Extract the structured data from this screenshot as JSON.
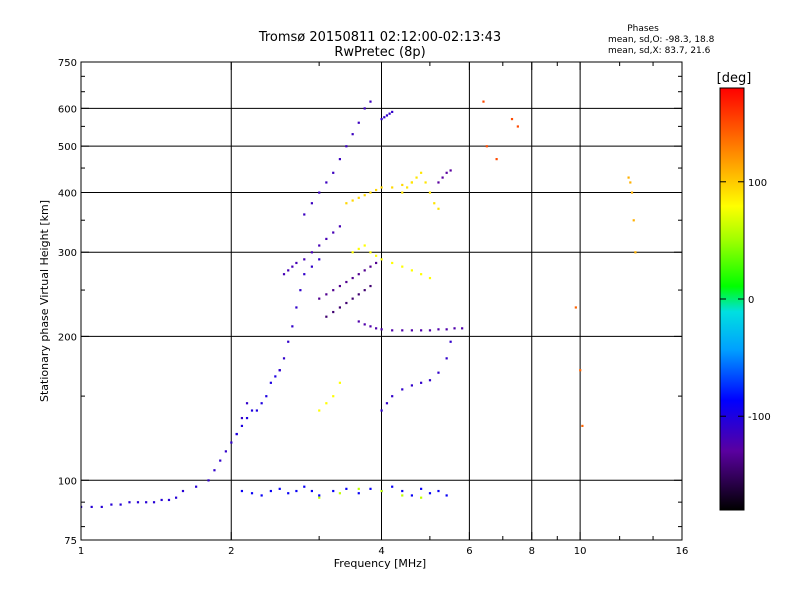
{
  "header": {
    "title": "Tromsø 20150811 02:12:00-02:13:43",
    "subtitle": "RwPretec (8p)"
  },
  "stats": {
    "heading": "Phases",
    "line_o": "mean, sd,O: -98.3, 18.8",
    "line_x": "mean, sd,X:  83.7, 21.6"
  },
  "colorbar": {
    "label": "[deg]",
    "range": [
      -180,
      180
    ],
    "ticks": [
      {
        "value": 100,
        "label": "100"
      },
      {
        "value": 0,
        "label": "0"
      },
      {
        "value": -100,
        "label": "-100"
      }
    ]
  },
  "chart_data": {
    "type": "scatter",
    "xlabel": "Frequency [MHz]",
    "ylabel": "Stationary phase Virtual Height [km]",
    "x_scale": "log",
    "y_scale": "log",
    "xlim": [
      1,
      16
    ],
    "ylim": [
      75,
      750
    ],
    "grid": true,
    "x_gridlines": [
      2,
      4,
      6,
      8,
      10
    ],
    "y_gridlines": [
      100,
      200,
      300,
      400,
      500,
      600
    ],
    "x_ticks": [
      {
        "value": 1,
        "label": "1"
      },
      {
        "value": 2,
        "label": "2"
      },
      {
        "value": 4,
        "label": "4"
      },
      {
        "value": 6,
        "label": "6"
      },
      {
        "value": 8,
        "label": "8"
      },
      {
        "value": 10,
        "label": "10"
      },
      {
        "value": 16,
        "label": "16"
      }
    ],
    "y_ticks": [
      {
        "value": 75,
        "label": "75"
      },
      {
        "value": 100,
        "label": "100"
      },
      {
        "value": 200,
        "label": "200"
      },
      {
        "value": 300,
        "label": "300"
      },
      {
        "value": 400,
        "label": "400"
      },
      {
        "value": 500,
        "label": "500"
      },
      {
        "value": 600,
        "label": "600"
      },
      {
        "value": 750,
        "label": "750"
      }
    ],
    "color_by": "phase (deg)",
    "traces": [
      {
        "x": [
          1.0,
          1.05,
          1.1,
          1.15,
          1.2,
          1.25,
          1.3,
          1.35,
          1.4,
          1.45,
          1.5,
          1.55,
          1.6,
          1.7
        ],
        "y": [
          88,
          88,
          88,
          89,
          89,
          90,
          90,
          90,
          90,
          91,
          91,
          92,
          95,
          97
        ],
        "phase": -105
      },
      {
        "x": [
          1.8,
          1.85,
          1.9,
          1.95,
          2.0,
          2.05,
          2.1,
          2.15
        ],
        "y": [
          100,
          105,
          110,
          115,
          120,
          125,
          135,
          145
        ],
        "phase": -110
      },
      {
        "x": [
          2.05,
          2.1,
          2.15,
          2.2,
          2.25,
          2.3,
          2.35,
          2.4,
          2.45,
          2.5
        ],
        "y": [
          125,
          130,
          135,
          140,
          140,
          145,
          150,
          160,
          165,
          170
        ],
        "phase": -100
      },
      {
        "x": [
          2.5,
          2.55,
          2.6,
          2.65,
          2.7,
          2.75,
          2.8,
          2.9,
          3.0
        ],
        "y": [
          170,
          180,
          195,
          210,
          230,
          250,
          270,
          280,
          290
        ],
        "phase": -110
      },
      {
        "x": [
          2.55,
          2.6,
          2.65,
          2.7,
          2.8,
          2.9,
          3.0,
          3.1,
          3.2,
          3.3
        ],
        "y": [
          270,
          275,
          280,
          285,
          290,
          300,
          310,
          320,
          330,
          340
        ],
        "phase": -120
      },
      {
        "x": [
          2.8,
          2.9,
          3.0,
          3.1,
          3.2,
          3.3,
          3.4,
          3.5,
          3.6,
          3.7,
          3.8
        ],
        "y": [
          360,
          380,
          400,
          420,
          440,
          470,
          500,
          530,
          560,
          600,
          620
        ],
        "phase": -115
      },
      {
        "x": [
          3.0,
          3.1,
          3.2,
          3.3,
          3.4,
          3.5,
          3.6,
          3.7,
          3.8,
          3.9
        ],
        "y": [
          240,
          245,
          250,
          255,
          260,
          265,
          270,
          275,
          280,
          285
        ],
        "phase": -135
      },
      {
        "x": [
          3.1,
          3.2,
          3.3,
          3.4,
          3.5,
          3.6,
          3.7,
          3.8
        ],
        "y": [
          220,
          225,
          230,
          235,
          240,
          245,
          250,
          255
        ],
        "phase": -145
      },
      {
        "x": [
          3.6,
          3.7,
          3.8,
          3.9,
          4.0,
          4.2,
          4.4,
          4.6,
          4.8,
          5.0,
          5.2,
          5.4,
          5.6,
          5.8
        ],
        "y": [
          215,
          212,
          210,
          208,
          207,
          206,
          206,
          206,
          206,
          206,
          207,
          207,
          208,
          208
        ],
        "phase": -125
      },
      {
        "x": [
          4.0,
          4.1,
          4.2,
          4.4,
          4.6,
          4.8,
          5.0,
          5.2,
          5.4,
          5.5
        ],
        "y": [
          140,
          145,
          150,
          155,
          158,
          160,
          162,
          168,
          180,
          195
        ],
        "phase": -110
      },
      {
        "x": [
          3.4,
          3.5,
          3.6,
          3.7,
          3.8,
          3.9,
          4.0,
          4.2,
          4.4,
          4.6
        ],
        "y": [
          380,
          385,
          390,
          395,
          400,
          405,
          410,
          410,
          415,
          420
        ],
        "phase": 95
      },
      {
        "x": [
          3.5,
          3.6,
          3.7,
          3.8,
          3.9,
          4.0,
          4.2,
          4.4,
          4.6,
          4.8,
          5.0
        ],
        "y": [
          300,
          305,
          310,
          300,
          295,
          290,
          285,
          280,
          275,
          270,
          265
        ],
        "phase": 80
      },
      {
        "x": [
          4.4,
          4.5,
          4.6,
          4.7,
          4.8,
          4.9,
          5.0,
          5.1,
          5.2
        ],
        "y": [
          400,
          410,
          420,
          430,
          440,
          420,
          400,
          380,
          370
        ],
        "phase": 90
      },
      {
        "x": [
          4.0,
          4.05,
          4.1,
          4.15,
          4.2
        ],
        "y": [
          570,
          575,
          580,
          585,
          590
        ],
        "phase": -110
      },
      {
        "x": [
          5.2,
          5.3,
          5.4,
          5.5
        ],
        "y": [
          420,
          430,
          440,
          445
        ],
        "phase": -130
      },
      {
        "x": [
          3.0,
          3.1,
          3.2,
          3.3
        ],
        "y": [
          140,
          145,
          150,
          160
        ],
        "phase": 80
      },
      {
        "x": [
          7.3,
          7.5,
          6.4,
          6.5,
          6.8
        ],
        "y": [
          570,
          550,
          620,
          500,
          470
        ],
        "phase": 150
      },
      {
        "x": [
          12.5,
          12.6,
          12.7,
          12.8,
          12.9
        ],
        "y": [
          430,
          420,
          400,
          350,
          300
        ],
        "phase": 110
      },
      {
        "x": [
          9.8,
          10.0,
          10.1
        ],
        "y": [
          230,
          170,
          130
        ],
        "phase": 140
      },
      {
        "x": [
          2.1,
          2.2,
          2.3,
          2.4,
          2.5,
          2.6,
          2.7,
          2.8,
          2.9,
          3.0,
          3.2,
          3.4,
          3.6,
          3.8,
          4.0,
          4.2,
          4.4,
          4.6,
          4.8,
          5.0,
          5.2,
          5.4
        ],
        "y": [
          95,
          94,
          93,
          95,
          96,
          94,
          95,
          97,
          95,
          93,
          95,
          96,
          94,
          96,
          95,
          97,
          95,
          93,
          96,
          94,
          95,
          93
        ],
        "phase": -90
      },
      {
        "x": [
          3.0,
          3.3,
          3.6,
          4.0,
          4.4,
          4.8
        ],
        "y": [
          92,
          94,
          96,
          95,
          93,
          92
        ],
        "phase": 60
      }
    ]
  }
}
